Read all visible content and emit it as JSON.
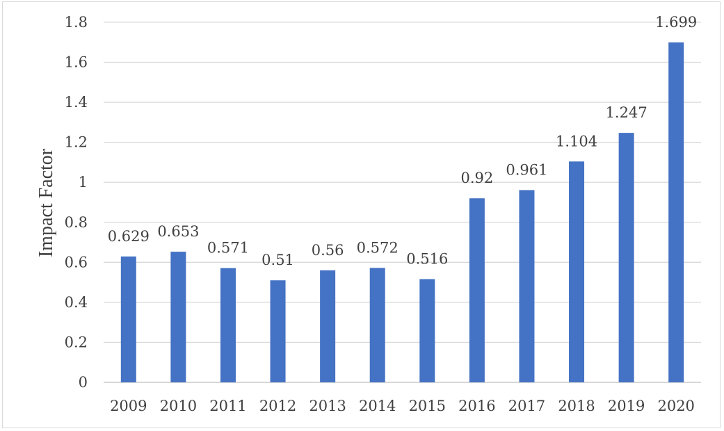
{
  "chart_data": {
    "type": "bar",
    "title": "",
    "xlabel": "",
    "ylabel": "Impact Factor",
    "ylim": [
      0,
      1.8
    ],
    "yticks": [
      "0",
      "0.2",
      "0.4",
      "0.6",
      "0.8",
      "1",
      "1.2",
      "1.4",
      "1.6",
      "1.8"
    ],
    "categories": [
      "2009",
      "2010",
      "2011",
      "2012",
      "2013",
      "2014",
      "2015",
      "2016",
      "2017",
      "2018",
      "2019",
      "2020"
    ],
    "values": [
      0.629,
      0.653,
      0.571,
      0.51,
      0.56,
      0.572,
      0.516,
      0.92,
      0.961,
      1.104,
      1.247,
      1.699
    ],
    "data_labels": [
      "0.629",
      "0.653",
      "0.571",
      "0.51",
      "0.56",
      "0.572",
      "0.516",
      "0.92",
      "0.961",
      "1.104",
      "1.247",
      "1.699"
    ],
    "grid": true,
    "legend": "none",
    "bar_color": "#4472c4",
    "grid_color": "#d9d9d9",
    "text_color": "#404040"
  }
}
